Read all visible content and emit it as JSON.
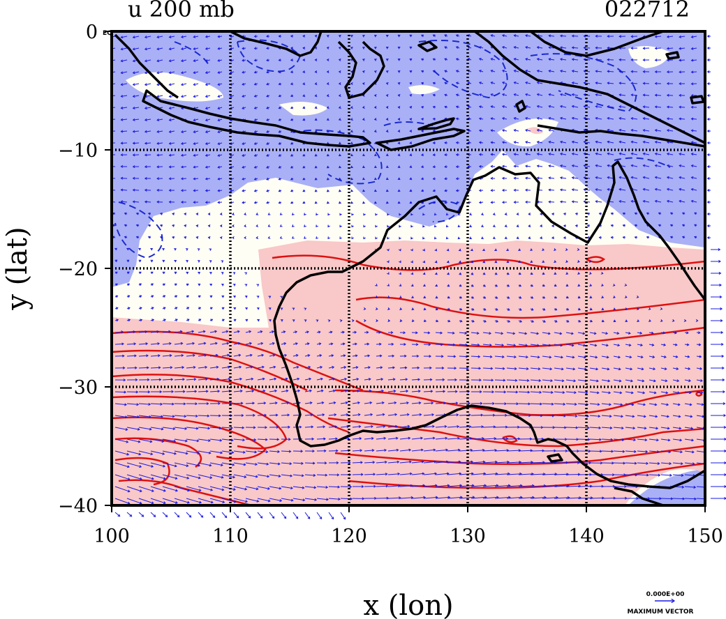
{
  "header": {
    "title": "u 200 mb",
    "date_code": "022712"
  },
  "axes": {
    "xlabel": "x (lon)",
    "ylabel": "y (lat)",
    "xticks": [
      "100",
      "110",
      "120",
      "130",
      "140",
      "150"
    ],
    "yticks": [
      "0",
      "−10",
      "−20",
      "−30",
      "−40"
    ],
    "corner_note": "EQ"
  },
  "legend": {
    "max_vector_value": "0.000E+00",
    "max_vector_label": "MAXIMUM VECTOR"
  },
  "colors": {
    "easterly_fill": "#aab0f5",
    "westerly_fill": "#f9c8c8",
    "neutral_fill": "#fffef5",
    "easterly_contour": "#1a2ad0",
    "westerly_contour": "#dd1111",
    "vector": "#1a1ae0",
    "coastline": "#000000"
  },
  "chart_data": {
    "type": "map",
    "variable": "u 200 mb",
    "xlim": [
      100,
      150
    ],
    "ylim": [
      -40,
      0
    ],
    "grid": true
  }
}
